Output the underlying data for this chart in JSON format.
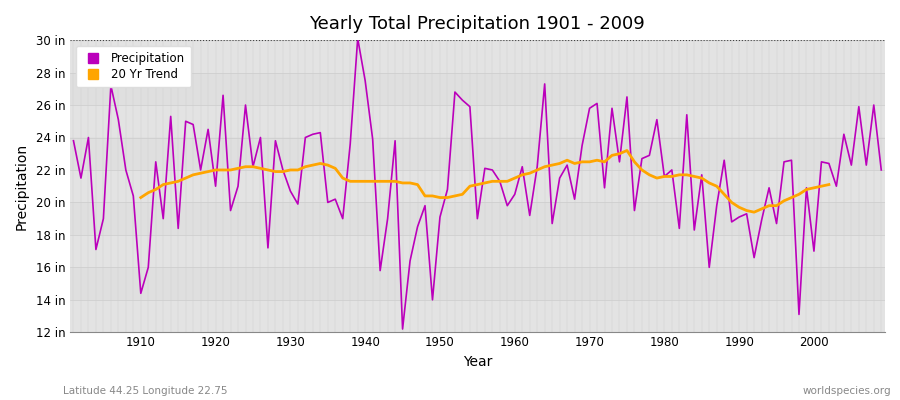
{
  "title": "Yearly Total Precipitation 1901 - 2009",
  "xlabel": "Year",
  "ylabel": "Precipitation",
  "footnote_left": "Latitude 44.25 Longitude 22.75",
  "footnote_right": "worldspecies.org",
  "fig_bg_color": "#ffffff",
  "plot_bg_color": "#e8e8e8",
  "precip_color": "#bb00bb",
  "trend_color": "#ffa500",
  "ylim": [
    12,
    30
  ],
  "yticks": [
    12,
    14,
    16,
    18,
    20,
    22,
    24,
    26,
    28,
    30
  ],
  "xticks": [
    1910,
    1920,
    1930,
    1940,
    1950,
    1960,
    1970,
    1980,
    1990,
    2000
  ],
  "years": [
    1901,
    1902,
    1903,
    1904,
    1905,
    1906,
    1907,
    1908,
    1909,
    1910,
    1911,
    1912,
    1913,
    1914,
    1915,
    1916,
    1917,
    1918,
    1919,
    1920,
    1921,
    1922,
    1923,
    1924,
    1925,
    1926,
    1927,
    1928,
    1929,
    1930,
    1931,
    1932,
    1933,
    1934,
    1935,
    1936,
    1937,
    1938,
    1939,
    1940,
    1941,
    1942,
    1943,
    1944,
    1945,
    1946,
    1947,
    1948,
    1949,
    1950,
    1951,
    1952,
    1953,
    1954,
    1955,
    1956,
    1957,
    1958,
    1959,
    1960,
    1961,
    1962,
    1963,
    1964,
    1965,
    1966,
    1967,
    1968,
    1969,
    1970,
    1971,
    1972,
    1973,
    1974,
    1975,
    1976,
    1977,
    1978,
    1979,
    1980,
    1981,
    1982,
    1983,
    1984,
    1985,
    1986,
    1987,
    1988,
    1989,
    1990,
    1991,
    1992,
    1993,
    1994,
    1995,
    1996,
    1997,
    1998,
    1999,
    2000,
    2001,
    2002,
    2003,
    2004,
    2005,
    2006,
    2007,
    2008,
    2009
  ],
  "precip": [
    23.8,
    21.5,
    24.0,
    17.1,
    19.0,
    27.2,
    25.1,
    22.0,
    20.4,
    14.4,
    16.0,
    22.5,
    19.0,
    25.3,
    18.4,
    25.0,
    24.8,
    22.0,
    24.5,
    21.0,
    26.6,
    19.5,
    21.0,
    26.0,
    22.2,
    24.0,
    17.2,
    23.8,
    22.0,
    20.7,
    19.9,
    24.0,
    24.2,
    24.3,
    20.0,
    20.2,
    19.0,
    23.6,
    30.1,
    27.5,
    23.9,
    15.8,
    19.0,
    23.8,
    12.2,
    16.4,
    18.5,
    19.8,
    14.0,
    19.1,
    20.8,
    26.8,
    26.3,
    25.9,
    19.0,
    22.1,
    22.0,
    21.3,
    19.8,
    20.5,
    22.2,
    19.2,
    22.2,
    27.3,
    18.7,
    21.5,
    22.3,
    20.2,
    23.5,
    25.8,
    26.1,
    20.9,
    25.8,
    22.5,
    26.5,
    19.5,
    22.7,
    22.9,
    25.1,
    21.6,
    22.0,
    18.4,
    25.4,
    18.3,
    21.7,
    16.0,
    19.8,
    22.6,
    18.8,
    19.1,
    19.3,
    16.6,
    18.9,
    20.9,
    18.7,
    22.5,
    22.6,
    13.1,
    20.9,
    17.0,
    22.5,
    22.4,
    21.0,
    24.2,
    22.3,
    25.9,
    22.3,
    26.0,
    22.0
  ],
  "trend": [
    null,
    null,
    null,
    null,
    null,
    null,
    null,
    null,
    null,
    20.3,
    20.6,
    20.8,
    21.1,
    21.2,
    21.3,
    21.5,
    21.7,
    21.8,
    21.9,
    22.0,
    22.0,
    22.0,
    22.1,
    22.2,
    22.2,
    22.1,
    22.0,
    21.9,
    21.9,
    22.0,
    22.0,
    22.2,
    22.3,
    22.4,
    22.3,
    22.1,
    21.5,
    21.3,
    21.3,
    21.3,
    21.3,
    21.3,
    21.3,
    21.3,
    21.2,
    21.2,
    21.1,
    20.4,
    20.4,
    20.3,
    20.3,
    20.4,
    20.5,
    21.0,
    21.1,
    21.2,
    21.3,
    21.3,
    21.3,
    21.5,
    21.7,
    21.8,
    22.0,
    22.2,
    22.3,
    22.4,
    22.6,
    22.4,
    22.5,
    22.5,
    22.6,
    22.5,
    22.9,
    23.0,
    23.2,
    22.5,
    22.0,
    21.7,
    21.5,
    21.6,
    21.6,
    21.7,
    21.7,
    21.6,
    21.5,
    21.2,
    21.0,
    20.5,
    20.0,
    19.7,
    19.5,
    19.4,
    19.6,
    19.8,
    19.8,
    20.1,
    20.3,
    20.5,
    20.8,
    20.9,
    21.0,
    21.1,
    null,
    null,
    null,
    null,
    null,
    null,
    null
  ]
}
